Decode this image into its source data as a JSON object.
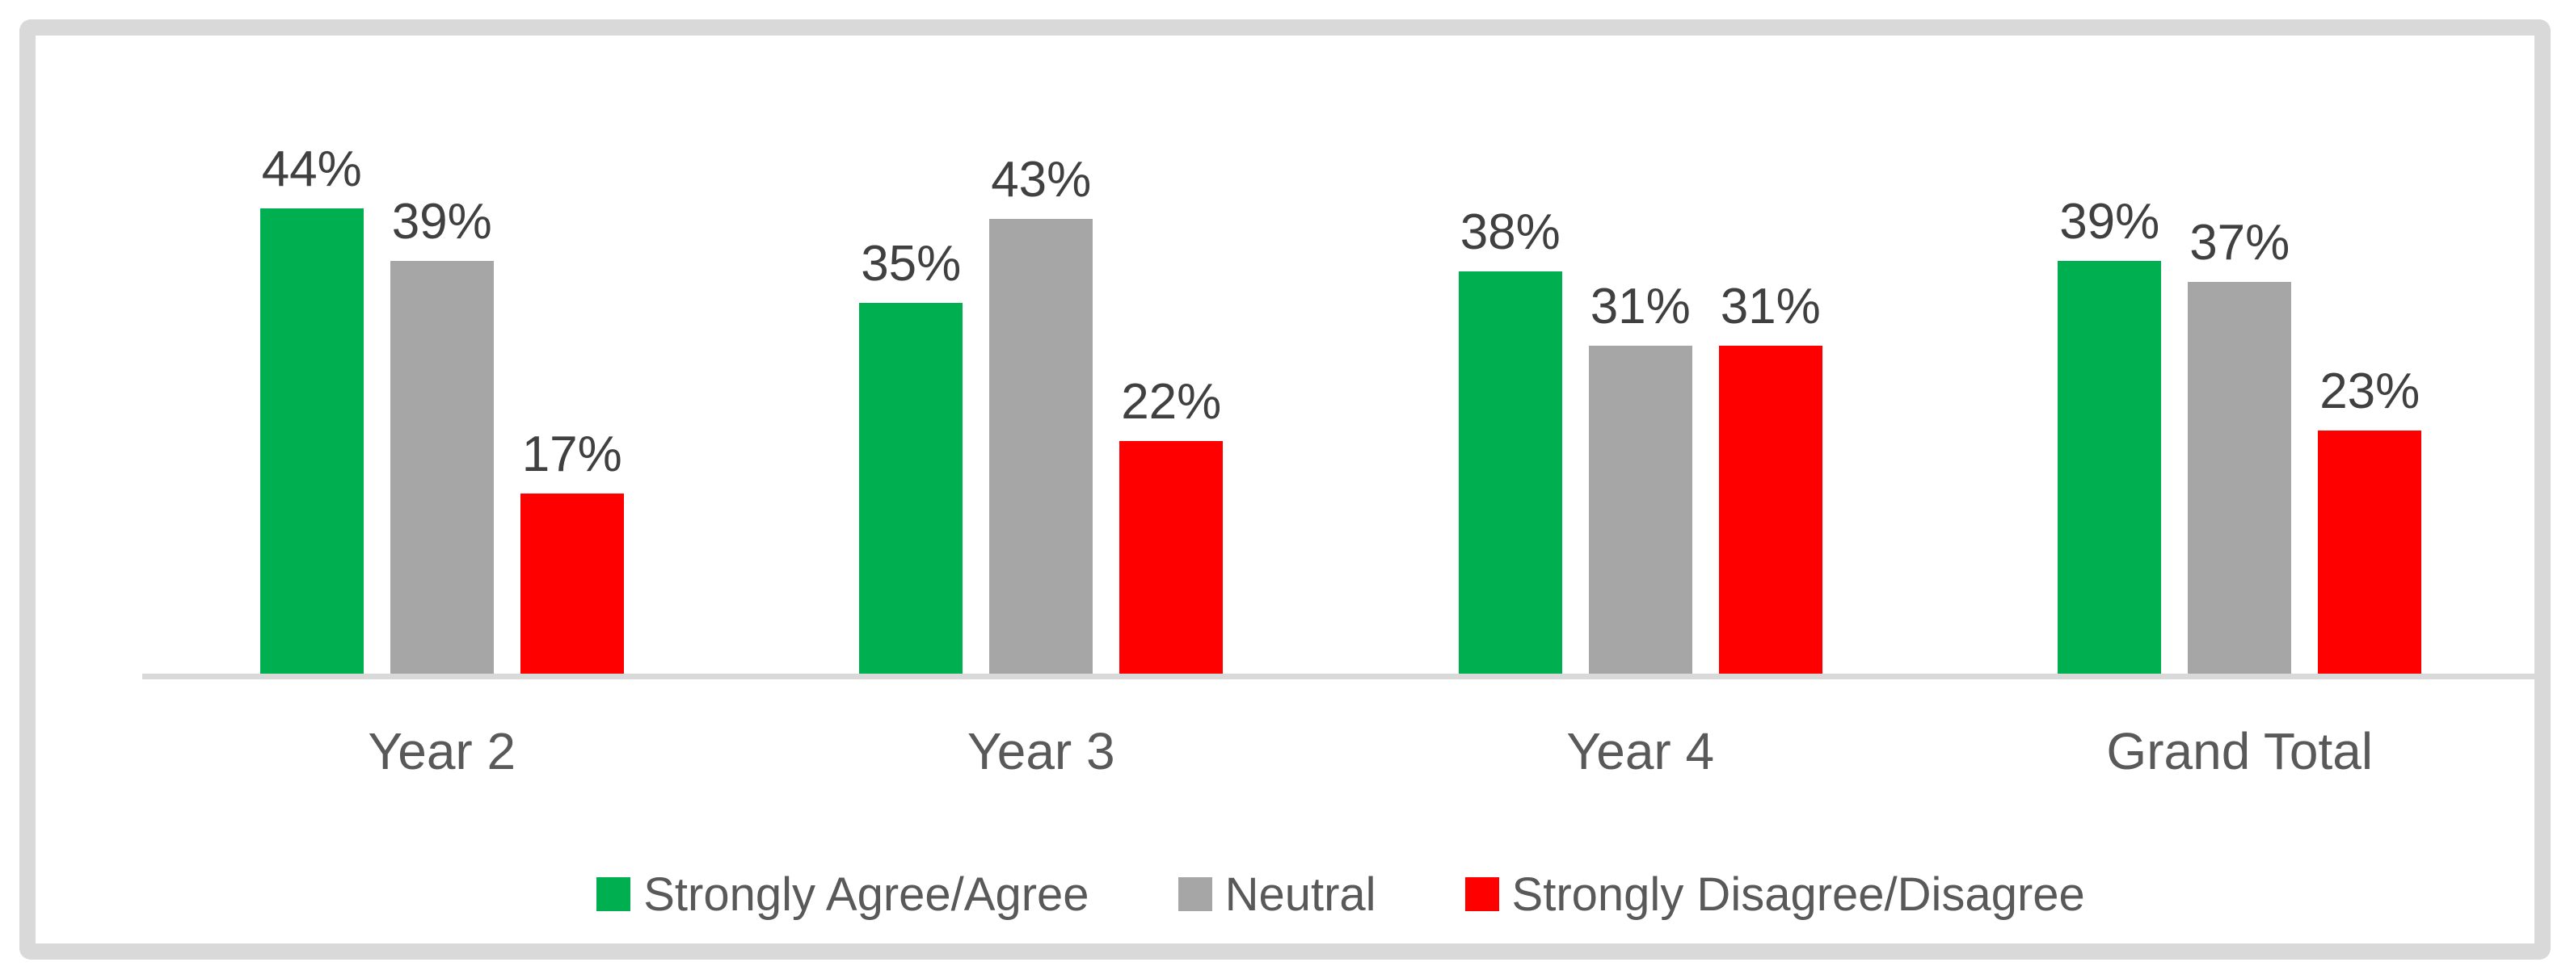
{
  "chart_data": {
    "type": "bar",
    "categories": [
      "Year 2",
      "Year 3",
      "Year 4",
      "Grand Total"
    ],
    "series": [
      {
        "name": "Strongly Agree/Agree",
        "color": "#00B050",
        "values": [
          44,
          35,
          38,
          39
        ]
      },
      {
        "name": "Neutral",
        "color": "#A6A6A6",
        "values": [
          39,
          43,
          31,
          37
        ]
      },
      {
        "name": "Strongly Disagree/Disagree",
        "color": "#FF0000",
        "values": [
          17,
          22,
          31,
          23
        ]
      }
    ],
    "data_labels": [
      "44%",
      "39%",
      "17%",
      "35%",
      "43%",
      "22%",
      "38%",
      "31%",
      "31%",
      "39%",
      "37%",
      "23%"
    ],
    "data_label_suffix": "%",
    "title": "",
    "xlabel": "",
    "ylabel": "",
    "y_axis_visible": false,
    "grid": false,
    "legend_position": "bottom",
    "ylim": [
      0,
      44
    ]
  },
  "style": {
    "frame_border_color": "#D9D9D9",
    "axis_line_color": "#D9D9D9",
    "data_label_color": "#404040",
    "category_label_color": "#595959",
    "legend_text_color": "#595959",
    "background": "#FFFFFF"
  }
}
